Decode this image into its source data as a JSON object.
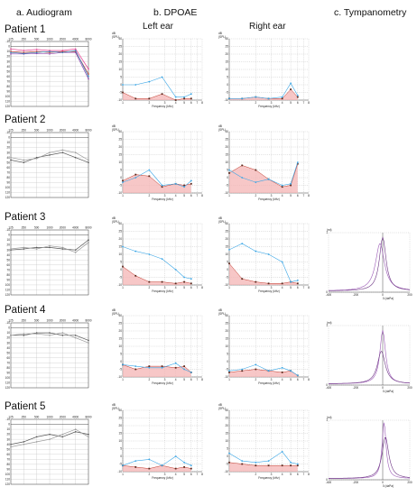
{
  "columns": {
    "audiogram": "a. Audiogram",
    "dpoae": "b. DPOAE",
    "tymp": "c. Tympanometry"
  },
  "ears": {
    "left": "Left ear",
    "right": "Right ear"
  },
  "patients": [
    "Patient 1",
    "Patient 2",
    "Patient 3",
    "Patient 4",
    "Patient 5"
  ],
  "audiogram_axis": {
    "freqs": [
      "125",
      "250",
      "500",
      "1000",
      "2000",
      "4000",
      "8000"
    ],
    "levels": [
      "-10",
      "0",
      "10",
      "20",
      "30",
      "40",
      "50",
      "60",
      "70",
      "80",
      "90",
      "100",
      "110",
      "120"
    ]
  },
  "dpoae_axis": {
    "unit_top": "dB",
    "unit_sub": "(SPL)",
    "y_ticks": [
      "30",
      "25",
      "20",
      "15",
      "10",
      "5",
      "0",
      "-5",
      "-10"
    ],
    "x_ticks": [
      "1",
      "2",
      "3",
      "4",
      "5",
      "6",
      "7",
      "8"
    ],
    "xlabel": "Frequency (kHz)"
  },
  "tymp_axis": {
    "unit": "(ml)",
    "x_ticks": [
      "-400",
      "-200",
      "0",
      "200"
    ],
    "xlabel": "0 (daPa)",
    "y_top": "1",
    "y_zero": "0"
  },
  "colors": {
    "dp": "#3aa6e6",
    "noise": "#f4b4b4",
    "noise_line": "#c0392b",
    "tymp1": "#9b59b6",
    "tymp2": "#6c3483"
  }
}
